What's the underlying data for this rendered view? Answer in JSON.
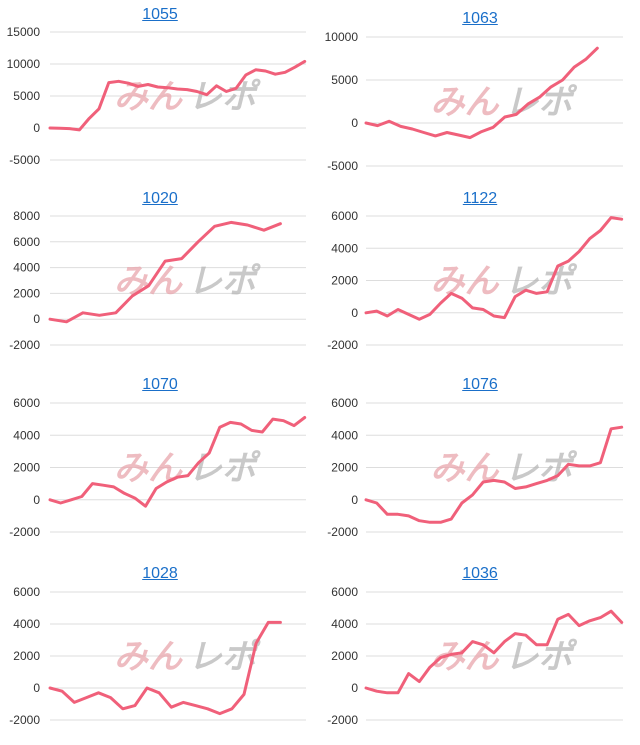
{
  "watermark": {
    "left": "みん",
    "right": "レポ"
  },
  "colors": {
    "line": "#f0607a",
    "grid": "#dddddd",
    "title": "#1a6fc9"
  },
  "chart_data": [
    {
      "type": "line",
      "title": "1055",
      "ylim": [
        -5000,
        15000
      ],
      "yticks": [
        15000,
        10000,
        5000,
        0,
        -5000
      ],
      "grid": true,
      "values": [
        0,
        -50,
        -100,
        -300,
        1500,
        3000,
        7100,
        7300,
        7000,
        6500,
        6800,
        6400,
        6300,
        6100,
        6000,
        5700,
        5200,
        6600,
        5700,
        6200,
        8300,
        9100,
        8900,
        8400,
        8700,
        9500,
        10400
      ]
    },
    {
      "type": "line",
      "title": "1063",
      "ylim": [
        -5000,
        10000
      ],
      "yticks": [
        10000,
        5000,
        0,
        -5000
      ],
      "grid": true,
      "values": [
        0,
        -300,
        200,
        -400,
        -700,
        -1100,
        -1500,
        -1100,
        -1400,
        -1700,
        -1000,
        -500,
        700,
        1000,
        2200,
        3000,
        4200,
        5000,
        6500,
        7400,
        8700
      ]
    },
    {
      "type": "line",
      "title": "1020",
      "ylim": [
        -2000,
        8000
      ],
      "yticks": [
        8000,
        6000,
        4000,
        2000,
        0,
        -2000
      ],
      "grid": true,
      "values": [
        0,
        -200,
        500,
        300,
        500,
        1800,
        2600,
        4500,
        4700,
        6000,
        7200,
        7500,
        7300,
        6900,
        7400
      ]
    },
    {
      "type": "line",
      "title": "1122",
      "ylim": [
        -2000,
        6000
      ],
      "yticks": [
        6000,
        4000,
        2000,
        0,
        -2000
      ],
      "grid": true,
      "values": [
        0,
        100,
        -200,
        200,
        -100,
        -400,
        -100,
        600,
        1200,
        900,
        300,
        200,
        -200,
        -300,
        1000,
        1400,
        1200,
        1300,
        2900,
        3200,
        3800,
        4600,
        5100,
        5900,
        5800
      ]
    },
    {
      "type": "line",
      "title": "1070",
      "ylim": [
        -2000,
        6000
      ],
      "yticks": [
        6000,
        4000,
        2000,
        0,
        -2000
      ],
      "grid": true,
      "values": [
        0,
        -200,
        0,
        200,
        1000,
        900,
        800,
        400,
        100,
        -400,
        700,
        1100,
        1400,
        1500,
        2300,
        2900,
        4500,
        4800,
        4700,
        4300,
        4200,
        5000,
        4900,
        4600,
        5100
      ]
    },
    {
      "type": "line",
      "title": "1076",
      "ylim": [
        -2000,
        6000
      ],
      "yticks": [
        6000,
        4000,
        2000,
        0,
        -2000
      ],
      "grid": true,
      "values": [
        0,
        -200,
        -900,
        -900,
        -1000,
        -1300,
        -1400,
        -1400,
        -1200,
        -200,
        300,
        1100,
        1200,
        1100,
        700,
        800,
        1000,
        1200,
        1500,
        2200,
        2100,
        2100,
        2300,
        4400,
        4500
      ]
    },
    {
      "type": "line",
      "title": "1028",
      "ylim": [
        -2000,
        6000
      ],
      "yticks": [
        6000,
        4000,
        2000,
        0,
        -2000
      ],
      "grid": true,
      "values": [
        0,
        -200,
        -900,
        -600,
        -300,
        -600,
        -1300,
        -1100,
        0,
        -300,
        -1200,
        -900,
        -1100,
        -1300,
        -1600,
        -1300,
        -400,
        2800,
        4100,
        4100
      ]
    },
    {
      "type": "line",
      "title": "1036",
      "ylim": [
        -2000,
        6000
      ],
      "yticks": [
        6000,
        4000,
        2000,
        0,
        -2000
      ],
      "grid": true,
      "values": [
        0,
        -200,
        -300,
        -300,
        900,
        400,
        1300,
        1900,
        2100,
        2200,
        2900,
        2700,
        2200,
        2900,
        3400,
        3300,
        2700,
        2700,
        4300,
        4600,
        3900,
        4200,
        4400,
        4800,
        4100
      ]
    }
  ]
}
